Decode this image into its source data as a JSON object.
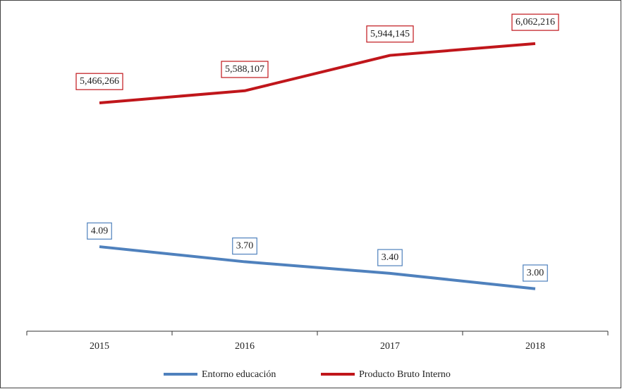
{
  "chart_data": {
    "type": "line",
    "categories": [
      "2015",
      "2016",
      "2017",
      "2018"
    ],
    "series": [
      {
        "name": "Entorno educación",
        "color": "#4f81bd",
        "values": [
          4.09,
          3.7,
          3.4,
          3.0
        ],
        "value_labels": [
          "4.09",
          "3.70",
          "3.40",
          "3.00"
        ]
      },
      {
        "name": "Producto Bruto Interno",
        "color": "#c0161b",
        "axis": "y2",
        "values": [
          5466266,
          5588107,
          5944145,
          6062216
        ],
        "value_labels": [
          "5,466,266",
          "5,588,107",
          "5,944,145",
          "6,062,216"
        ]
      }
    ],
    "ylim": [
      1.9,
      10.3
    ],
    "y2lim": [
      3170000,
      6430000
    ],
    "legend": "bottom"
  }
}
